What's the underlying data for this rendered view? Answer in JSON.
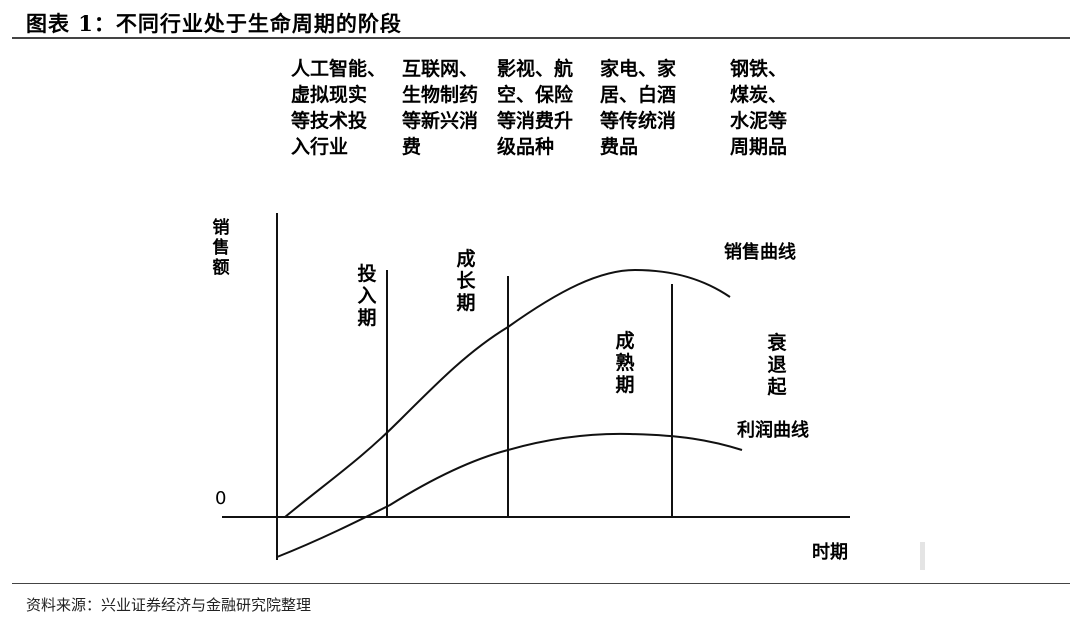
{
  "figure": {
    "title": "图表 1：不同行业处于生命周期的阶段",
    "source": "资料来源：兴业证券经济与金融研究院整理"
  },
  "industries": [
    {
      "stage": "投入期",
      "text": "人工智能、\n虚拟现实\n等技术投\n入行业"
    },
    {
      "stage": "成长期",
      "text": "互联网、\n生物制药\n等新兴消\n费"
    },
    {
      "stage": "成长期",
      "text": "影视、航\n空、保险\n等消费升\n级品种"
    },
    {
      "stage": "成熟期",
      "text": "家电、家\n居、白酒\n等传统消\n费品"
    },
    {
      "stage": "衰退起",
      "text": "钢铁、\n煤炭、\n水泥等\n周期品"
    }
  ],
  "stages": {
    "intro": "投入期",
    "growth": "成长期",
    "mature": "成熟期",
    "decline": "衰退起"
  },
  "axes": {
    "y_label": "销售额",
    "x_label": "时期",
    "zero": "0"
  },
  "curves": {
    "sales_label": "销售曲线",
    "profit_label": "利润曲线"
  },
  "colors": {
    "line": "#111111",
    "text": "#000000"
  }
}
